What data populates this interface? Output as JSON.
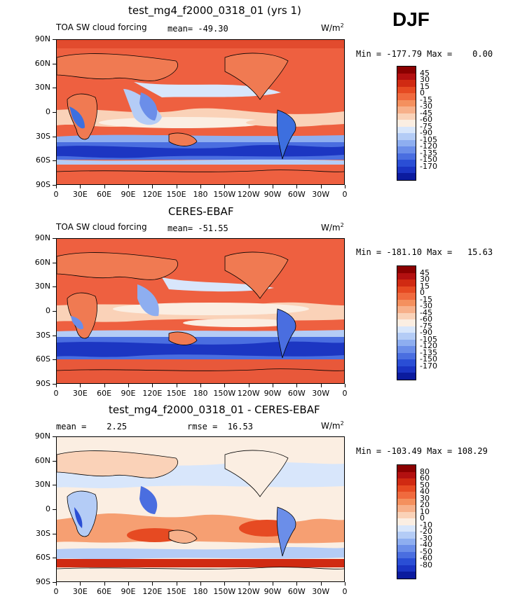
{
  "season": "DJF",
  "colors": {
    "ocean_warm": "#ee6040",
    "land": "#f07a52",
    "south_band": "#3d6fdf",
    "deep_blue": "#1c36c2"
  },
  "panels": [
    {
      "title": "test_mg4_f2000_0318_01 (yrs 1)",
      "left_label": "TOA SW cloud forcing",
      "stat_label": "mean= -49.30",
      "stat2_label": "",
      "units_label": "W/m",
      "units_sup": "2",
      "minmax": "Min = -177.79 Max =    0.00",
      "colorbar": {
        "labels": [
          "45",
          "30",
          "15",
          "0",
          "-15",
          "-30",
          "-45",
          "-60",
          "-75",
          "-90",
          "-105",
          "-120",
          "-135",
          "-150",
          "-170"
        ],
        "colors": [
          "#8b0000",
          "#b31010",
          "#d02a12",
          "#e64a22",
          "#f06a3e",
          "#f4905e",
          "#f7b08a",
          "#fad2b8",
          "#fbeee2",
          "#d8e6fb",
          "#b4ccf6",
          "#8eaef0",
          "#6b8ee9",
          "#4a6ee0",
          "#2a4ed5",
          "#1a34c3",
          "#0b1b9e"
        ]
      }
    },
    {
      "title": "CERES-EBAF",
      "left_label": "TOA SW cloud forcing",
      "stat_label": "mean= -51.55",
      "stat2_label": "",
      "units_label": "W/m",
      "units_sup": "2",
      "minmax": "Min = -181.10 Max =   15.63",
      "colorbar": {
        "labels": [
          "45",
          "30",
          "15",
          "0",
          "-15",
          "-30",
          "-45",
          "-60",
          "-75",
          "-90",
          "-105",
          "-120",
          "-135",
          "-150",
          "-170"
        ],
        "colors": [
          "#8b0000",
          "#b31010",
          "#d02a12",
          "#e64a22",
          "#f06a3e",
          "#f4905e",
          "#f7b08a",
          "#fad2b8",
          "#fbeee2",
          "#d8e6fb",
          "#b4ccf6",
          "#8eaef0",
          "#6b8ee9",
          "#4a6ee0",
          "#2a4ed5",
          "#1a34c3",
          "#0b1b9e"
        ]
      }
    },
    {
      "title": "test_mg4_f2000_0318_01 - CERES-EBAF",
      "left_label": "",
      "stat_label": "mean =    2.25",
      "stat2_label": "rmse =  16.53",
      "units_label": "W/m",
      "units_sup": "2",
      "minmax": "Min = -103.49 Max = 108.29",
      "colorbar": {
        "labels": [
          "80",
          "60",
          "50",
          "40",
          "30",
          "20",
          "10",
          "0",
          "-10",
          "-20",
          "-30",
          "-40",
          "-50",
          "-60",
          "-80"
        ],
        "colors": [
          "#8b0000",
          "#b31010",
          "#d02a12",
          "#e64a22",
          "#f06a3e",
          "#f4905e",
          "#f7b08a",
          "#fad2b8",
          "#fbeee2",
          "#d8e6fb",
          "#b4ccf6",
          "#8eaef0",
          "#6b8ee9",
          "#4a6ee0",
          "#2a4ed5",
          "#1a34c3",
          "#0b1b9e"
        ]
      }
    }
  ],
  "y_ticks": [
    "90N",
    "60N",
    "30N",
    "0",
    "30S",
    "60S",
    "90S"
  ],
  "x_ticks": [
    "0",
    "30E",
    "60E",
    "90E",
    "120E",
    "150E",
    "180",
    "150W",
    "120W",
    "90W",
    "60W",
    "30W",
    "0"
  ]
}
